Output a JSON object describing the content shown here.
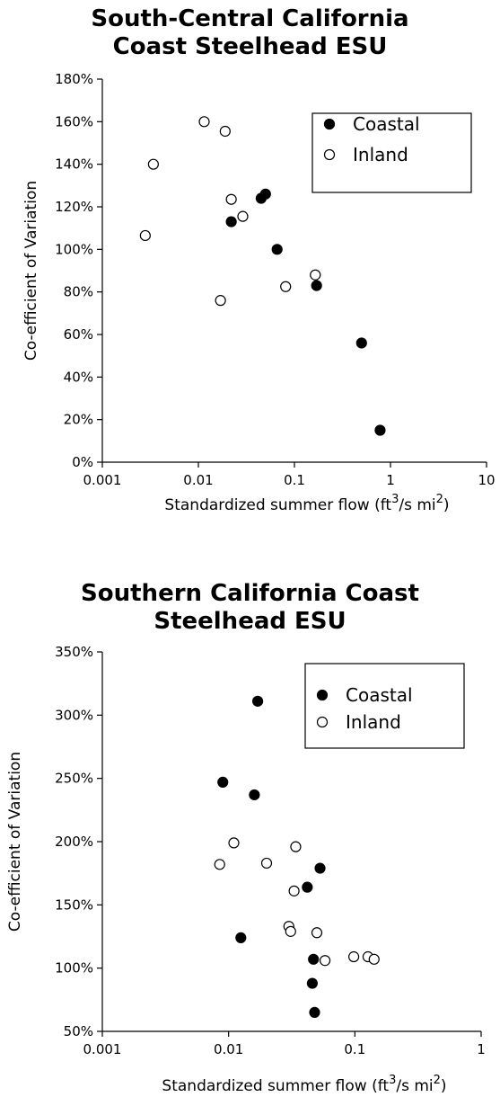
{
  "chart_data": [
    {
      "type": "scatter",
      "title_lines": [
        "South-Central California",
        "Coast Steelhead ESU"
      ],
      "xlabel": "Standardized summer flow (ft",
      "xlabel_sup1": "3",
      "xlabel_mid": "/s mi",
      "xlabel_sup2": "2",
      "xlabel_end": ")",
      "ylabel": "Co-efficient of Variation",
      "x_scale": "log",
      "xlim": [
        0.001,
        10
      ],
      "ylim": [
        0,
        1.8
      ],
      "x_ticks": [
        {
          "value": 0.001,
          "label": "0.001"
        },
        {
          "value": 0.01,
          "label": "0.01"
        },
        {
          "value": 0.1,
          "label": "0.1"
        },
        {
          "value": 1,
          "label": "1"
        },
        {
          "value": 10,
          "label": "10"
        }
      ],
      "y_ticks": [
        {
          "value": 0,
          "label": "0%"
        },
        {
          "value": 0.2,
          "label": "20%"
        },
        {
          "value": 0.4,
          "label": "40%"
        },
        {
          "value": 0.6,
          "label": "60%"
        },
        {
          "value": 0.8,
          "label": "80%"
        },
        {
          "value": 1.0,
          "label": "100%"
        },
        {
          "value": 1.2,
          "label": "120%"
        },
        {
          "value": 1.4,
          "label": "140%"
        },
        {
          "value": 1.6,
          "label": "160%"
        },
        {
          "value": 1.8,
          "label": "180%"
        }
      ],
      "grid": false,
      "legend_position": "top-right",
      "series": [
        {
          "name": "Coastal",
          "marker": "filled-circle",
          "color": "#000000",
          "points": [
            {
              "x": 0.022,
              "y": 1.13
            },
            {
              "x": 0.045,
              "y": 1.24
            },
            {
              "x": 0.05,
              "y": 1.26
            },
            {
              "x": 0.066,
              "y": 1.0
            },
            {
              "x": 0.17,
              "y": 0.83
            },
            {
              "x": 0.5,
              "y": 0.56
            },
            {
              "x": 0.78,
              "y": 0.15
            }
          ]
        },
        {
          "name": "Inland",
          "marker": "open-circle",
          "color": "#000000",
          "points": [
            {
              "x": 0.0028,
              "y": 1.065
            },
            {
              "x": 0.0034,
              "y": 1.4
            },
            {
              "x": 0.0115,
              "y": 1.6
            },
            {
              "x": 0.019,
              "y": 1.555
            },
            {
              "x": 0.022,
              "y": 1.235
            },
            {
              "x": 0.029,
              "y": 1.155
            },
            {
              "x": 0.017,
              "y": 0.76
            },
            {
              "x": 0.081,
              "y": 0.825
            },
            {
              "x": 0.165,
              "y": 0.88
            }
          ]
        }
      ]
    },
    {
      "type": "scatter",
      "title_lines": [
        "Southern California Coast",
        "Steelhead ESU"
      ],
      "xlabel": "Standardized summer flow (ft",
      "xlabel_sup1": "3",
      "xlabel_mid": "/s mi",
      "xlabel_sup2": "2",
      "xlabel_end": ")",
      "ylabel": "Co-efficient of Variation",
      "x_scale": "log",
      "xlim": [
        0.001,
        1
      ],
      "ylim": [
        0.5,
        3.5
      ],
      "x_ticks": [
        {
          "value": 0.001,
          "label": "0.001"
        },
        {
          "value": 0.01,
          "label": "0.01"
        },
        {
          "value": 0.1,
          "label": "0.1"
        },
        {
          "value": 1,
          "label": "1"
        }
      ],
      "y_ticks": [
        {
          "value": 0.5,
          "label": "50%"
        },
        {
          "value": 1.0,
          "label": "100%"
        },
        {
          "value": 1.5,
          "label": "150%"
        },
        {
          "value": 2.0,
          "label": "200%"
        },
        {
          "value": 2.5,
          "label": "250%"
        },
        {
          "value": 3.0,
          "label": "300%"
        },
        {
          "value": 3.5,
          "label": "350%"
        }
      ],
      "grid": false,
      "legend_position": "top-right",
      "series": [
        {
          "name": "Coastal",
          "marker": "filled-circle",
          "color": "#000000",
          "points": [
            {
              "x": 0.017,
              "y": 3.11
            },
            {
              "x": 0.009,
              "y": 2.47
            },
            {
              "x": 0.016,
              "y": 2.37
            },
            {
              "x": 0.053,
              "y": 1.79
            },
            {
              "x": 0.042,
              "y": 1.64
            },
            {
              "x": 0.0125,
              "y": 1.24
            },
            {
              "x": 0.047,
              "y": 1.07
            },
            {
              "x": 0.046,
              "y": 0.88
            },
            {
              "x": 0.048,
              "y": 0.65
            }
          ]
        },
        {
          "name": "Inland",
          "marker": "open-circle",
          "color": "#000000",
          "points": [
            {
              "x": 0.011,
              "y": 1.99
            },
            {
              "x": 0.0085,
              "y": 1.82
            },
            {
              "x": 0.02,
              "y": 1.83
            },
            {
              "x": 0.034,
              "y": 1.96
            },
            {
              "x": 0.033,
              "y": 1.61
            },
            {
              "x": 0.03,
              "y": 1.33
            },
            {
              "x": 0.031,
              "y": 1.29
            },
            {
              "x": 0.05,
              "y": 1.28
            },
            {
              "x": 0.058,
              "y": 1.06
            },
            {
              "x": 0.098,
              "y": 1.09
            },
            {
              "x": 0.127,
              "y": 1.09
            },
            {
              "x": 0.142,
              "y": 1.07
            }
          ]
        }
      ]
    }
  ]
}
